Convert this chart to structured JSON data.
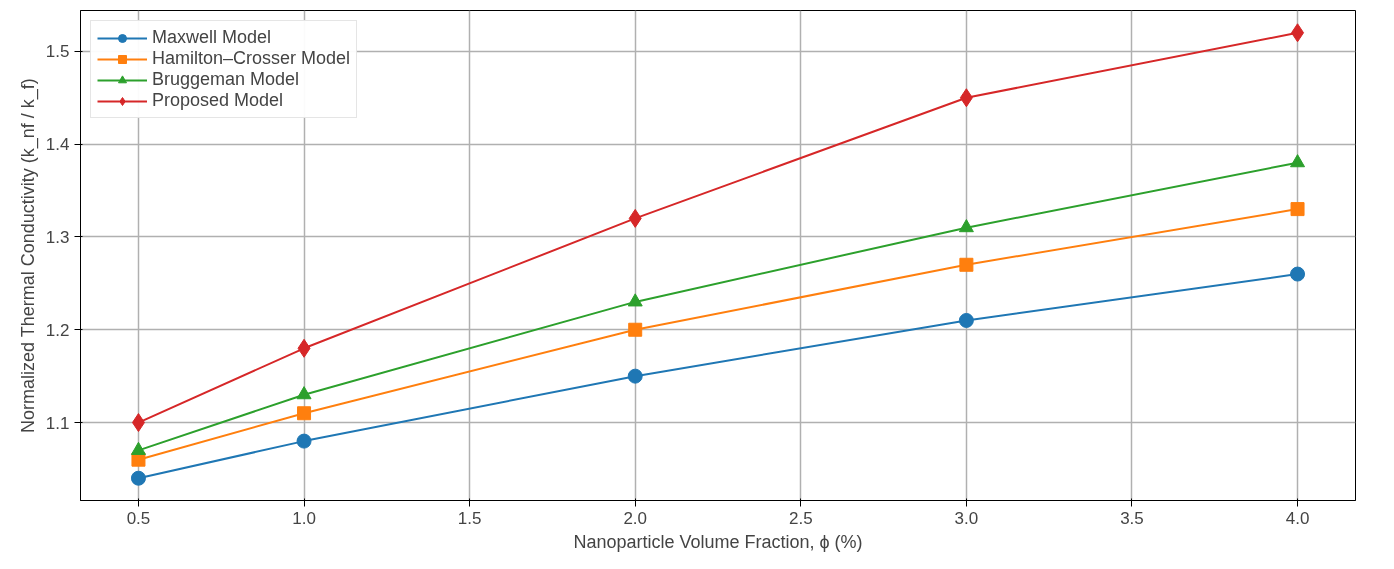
{
  "chart_data": {
    "type": "line",
    "xlabel": "Nanoparticle Volume Fraction, ϕ (%)",
    "ylabel": "Normalized Thermal Conductivity (k_nf / k_f)",
    "x": [
      0.5,
      1.0,
      2.0,
      3.0,
      4.0
    ],
    "series": [
      {
        "name": "Maxwell Model",
        "color": "#1f77b4",
        "marker": "circle",
        "values": [
          1.04,
          1.08,
          1.15,
          1.21,
          1.26
        ]
      },
      {
        "name": "Hamilton–Crosser Model",
        "color": "#ff7f0e",
        "marker": "square",
        "values": [
          1.06,
          1.11,
          1.2,
          1.27,
          1.33
        ]
      },
      {
        "name": "Bruggeman Model",
        "color": "#2ca02c",
        "marker": "triangle",
        "values": [
          1.07,
          1.13,
          1.23,
          1.31,
          1.38
        ]
      },
      {
        "name": "Proposed Model",
        "color": "#d62728",
        "marker": "diamond",
        "values": [
          1.1,
          1.18,
          1.32,
          1.45,
          1.52
        ]
      }
    ],
    "xlim": [
      0.325,
      4.175
    ],
    "xticks": [
      {
        "value": 0.5,
        "label": "0.5"
      },
      {
        "value": 1.0,
        "label": "1.0"
      },
      {
        "value": 1.5,
        "label": "1.5"
      },
      {
        "value": 2.0,
        "label": "2.0"
      },
      {
        "value": 2.5,
        "label": "2.5"
      },
      {
        "value": 3.0,
        "label": "3.0"
      },
      {
        "value": 3.5,
        "label": "3.5"
      },
      {
        "value": 4.0,
        "label": "4.0"
      }
    ],
    "ylim": [
      1.016,
      1.544
    ],
    "yticks": [
      {
        "value": 1.1,
        "label": "1.1"
      },
      {
        "value": 1.2,
        "label": "1.2"
      },
      {
        "value": 1.3,
        "label": "1.3"
      },
      {
        "value": 1.4,
        "label": "1.4"
      },
      {
        "value": 1.5,
        "label": "1.5"
      }
    ],
    "grid": true,
    "legend": "top left",
    "line_style": "solid"
  }
}
